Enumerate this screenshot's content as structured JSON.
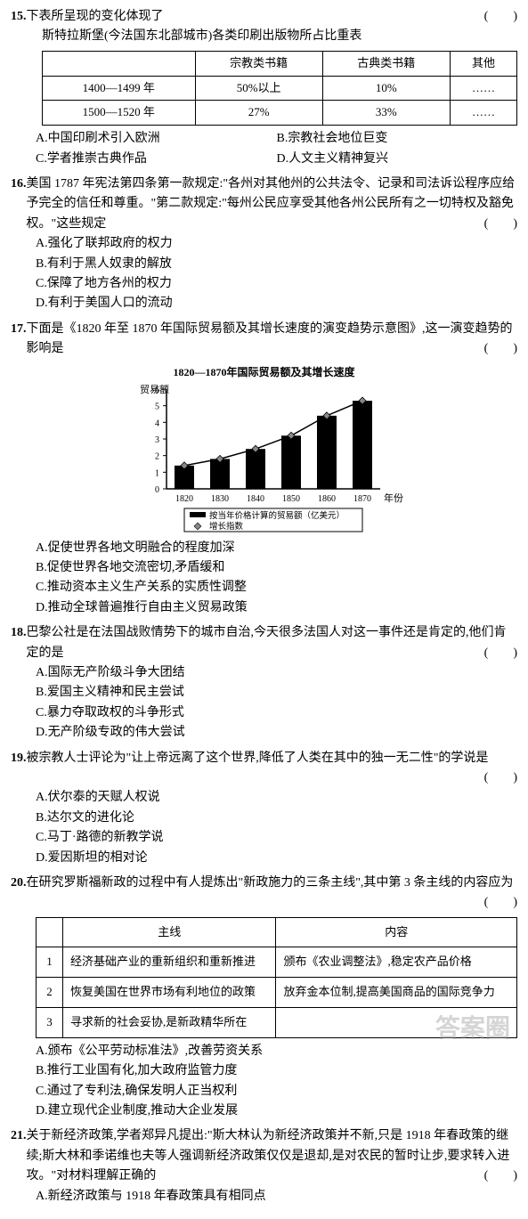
{
  "q15": {
    "num": "15.",
    "stem": "下表所呈现的变化体现了",
    "paren": "(　　)",
    "subtitle": "斯特拉斯堡(今法国东北部城市)各类印刷出版物所占比重表",
    "table": {
      "headers": [
        "",
        "宗教类书籍",
        "古典类书籍",
        "其他"
      ],
      "rows": [
        [
          "1400—1499 年",
          "50%以上",
          "10%",
          "……"
        ],
        [
          "1500—1520 年",
          "27%",
          "33%",
          "……"
        ]
      ]
    },
    "opts": [
      {
        "a": "A.中国印刷术引入欧洲",
        "b": "B.宗教社会地位巨变"
      },
      {
        "a": "C.学者推崇古典作品",
        "b": "D.人文主义精神复兴"
      }
    ]
  },
  "q16": {
    "num": "16.",
    "stem": "美国 1787 年宪法第四条第一款规定:\"各州对其他州的公共法令、记录和司法诉讼程序应给予完全的信任和尊重。\"第二款规定:\"每州公民应享受其他各州公民所有之一切特权及豁免权。\"这些规定",
    "paren": "(　　)",
    "opts": [
      "A.强化了联邦政府的权力",
      "B.有利于黑人奴隶的解放",
      "C.保障了地方各州的权力",
      "D.有利于美国人口的流动"
    ]
  },
  "q17": {
    "num": "17.",
    "stem": "下面是《1820 年至 1870 年国际贸易额及其增长速度的演变趋势示意图》,这一演变趋势的影响是",
    "paren": "(　　)",
    "chart": {
      "title": "1820—1870年国际贸易额及其增长速度",
      "ylabel": "贸易额",
      "xlabel": "年份",
      "years": [
        "1820",
        "1830",
        "1840",
        "1850",
        "1860",
        "1870"
      ],
      "bars": [
        1.4,
        1.8,
        2.4,
        3.2,
        4.4,
        5.3
      ],
      "yticks": [
        0,
        1,
        2,
        3,
        4,
        5,
        6
      ],
      "bar_color": "#000000",
      "line_color": "#000000",
      "marker": "diamond",
      "legend": [
        "按当年价格计算的贸易额（亿美元）",
        "增长指数"
      ]
    },
    "opts": [
      "A.促使世界各地文明融合的程度加深",
      "B.促使世界各地交流密切,矛盾缓和",
      "C.推动资本主义生产关系的实质性调整",
      "D.推动全球普遍推行自由主义贸易政策"
    ]
  },
  "q18": {
    "num": "18.",
    "stem": "巴黎公社是在法国战败情势下的城市自治,今天很多法国人对这一事件还是肯定的,他们肯定的是",
    "paren": "(　　)",
    "opts": [
      "A.国际无产阶级斗争大团结",
      "B.爱国主义精神和民主尝试",
      "C.暴力夺取政权的斗争形式",
      "D.无产阶级专政的伟大尝试"
    ]
  },
  "q19": {
    "num": "19.",
    "stem": "被宗教人士评论为\"让上帝远离了这个世界,降低了人类在其中的独一无二性\"的学说是",
    "paren": "(　　)",
    "opts": [
      "A.伏尔泰的天赋人权说",
      "B.达尔文的进化论",
      "C.马丁·路德的新教学说",
      "D.爱因斯坦的相对论"
    ]
  },
  "q20": {
    "num": "20.",
    "stem": "在研究罗斯福新政的过程中有人提炼出\"新政施力的三条主线\",其中第 3 条主线的内容应为",
    "paren": "(　　)",
    "table": {
      "headers": [
        "",
        "主线",
        "内容"
      ],
      "rows": [
        [
          "1",
          "经济基础产业的重新组织和重新推进",
          "颁布《农业调整法》,稳定农产品价格"
        ],
        [
          "2",
          "恢复美国在世界市场有利地位的政策",
          "放弃金本位制,提高美国商品的国际竞争力"
        ],
        [
          "3",
          "寻求新的社会妥协,是新政精华所在",
          ""
        ]
      ]
    },
    "opts": [
      "A.颁布《公平劳动标准法》,改善劳资关系",
      "B.推行工业国有化,加大政府监管力度",
      "C.通过了专利法,确保发明人正当权利",
      "D.建立现代企业制度,推动大企业发展"
    ]
  },
  "q21": {
    "num": "21.",
    "stem": "关于新经济政策,学者郑异凡提出:\"斯大林认为新经济政策并不新,只是 1918 年春政策的继续;斯大林和季诺维也夫等人强调新经济政策仅仅是退却,是对农民的暂时让步,要求转入进攻。\"对材料理解正确的",
    "paren": "(　　)",
    "opts_partial": "A.新经济政策与 1918 年春政策具有相同点"
  },
  "watermark": "答案圈"
}
